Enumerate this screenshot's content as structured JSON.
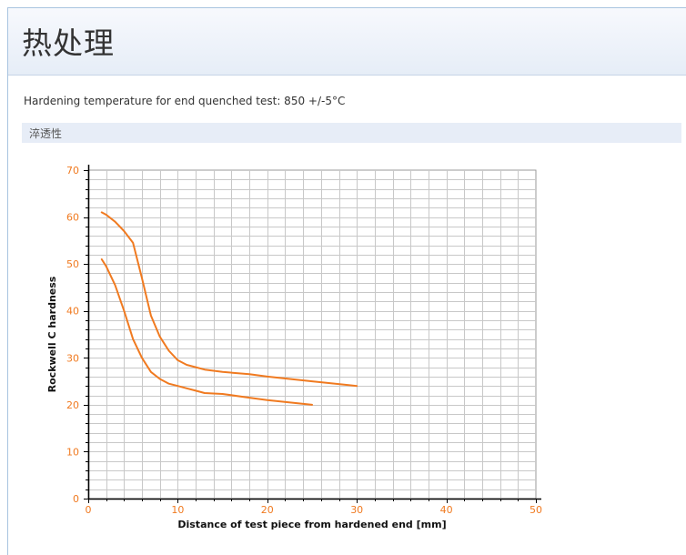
{
  "page": {
    "title": "热处理",
    "info_line": "Hardening temperature for end quenched test: 850 +/-5°C",
    "section_title": "淬透性"
  },
  "colors": {
    "curve": "#f07a20",
    "tick_label": "#f07a20",
    "grid": "#c8c8c8",
    "header_bg": "#e6edf7",
    "section_bg": "#e7edf7"
  },
  "chart_data": {
    "type": "line",
    "title": "",
    "xlabel": "Distance of test piece from hardened end [mm]",
    "ylabel": "Rockwell C hardness",
    "xlim": [
      0,
      50
    ],
    "ylim": [
      0,
      70
    ],
    "x_ticks": [
      "0",
      "10",
      "20",
      "30",
      "40",
      "50"
    ],
    "y_ticks": [
      "0",
      "10",
      "20",
      "30",
      "40",
      "50",
      "60",
      "70"
    ],
    "grid": true,
    "legend": "none",
    "series": [
      {
        "x": [
          1.5,
          2,
          3,
          4,
          5,
          6,
          7,
          8,
          9,
          10,
          11,
          12,
          13,
          15,
          18,
          20,
          25,
          30
        ],
        "y": [
          61,
          60.5,
          59,
          57,
          54.5,
          47,
          39,
          34.5,
          31.5,
          29.5,
          28.5,
          28,
          27.5,
          27,
          26.5,
          26,
          25,
          24
        ]
      },
      {
        "x": [
          1.5,
          2,
          3,
          4,
          5,
          6,
          7,
          8,
          9,
          10,
          11,
          12,
          13,
          15,
          18,
          20,
          25
        ],
        "y": [
          51,
          49.5,
          45.5,
          40,
          34,
          30,
          27,
          25.5,
          24.5,
          24,
          23.5,
          23,
          22.5,
          22.3,
          21.5,
          21,
          20
        ]
      }
    ]
  }
}
